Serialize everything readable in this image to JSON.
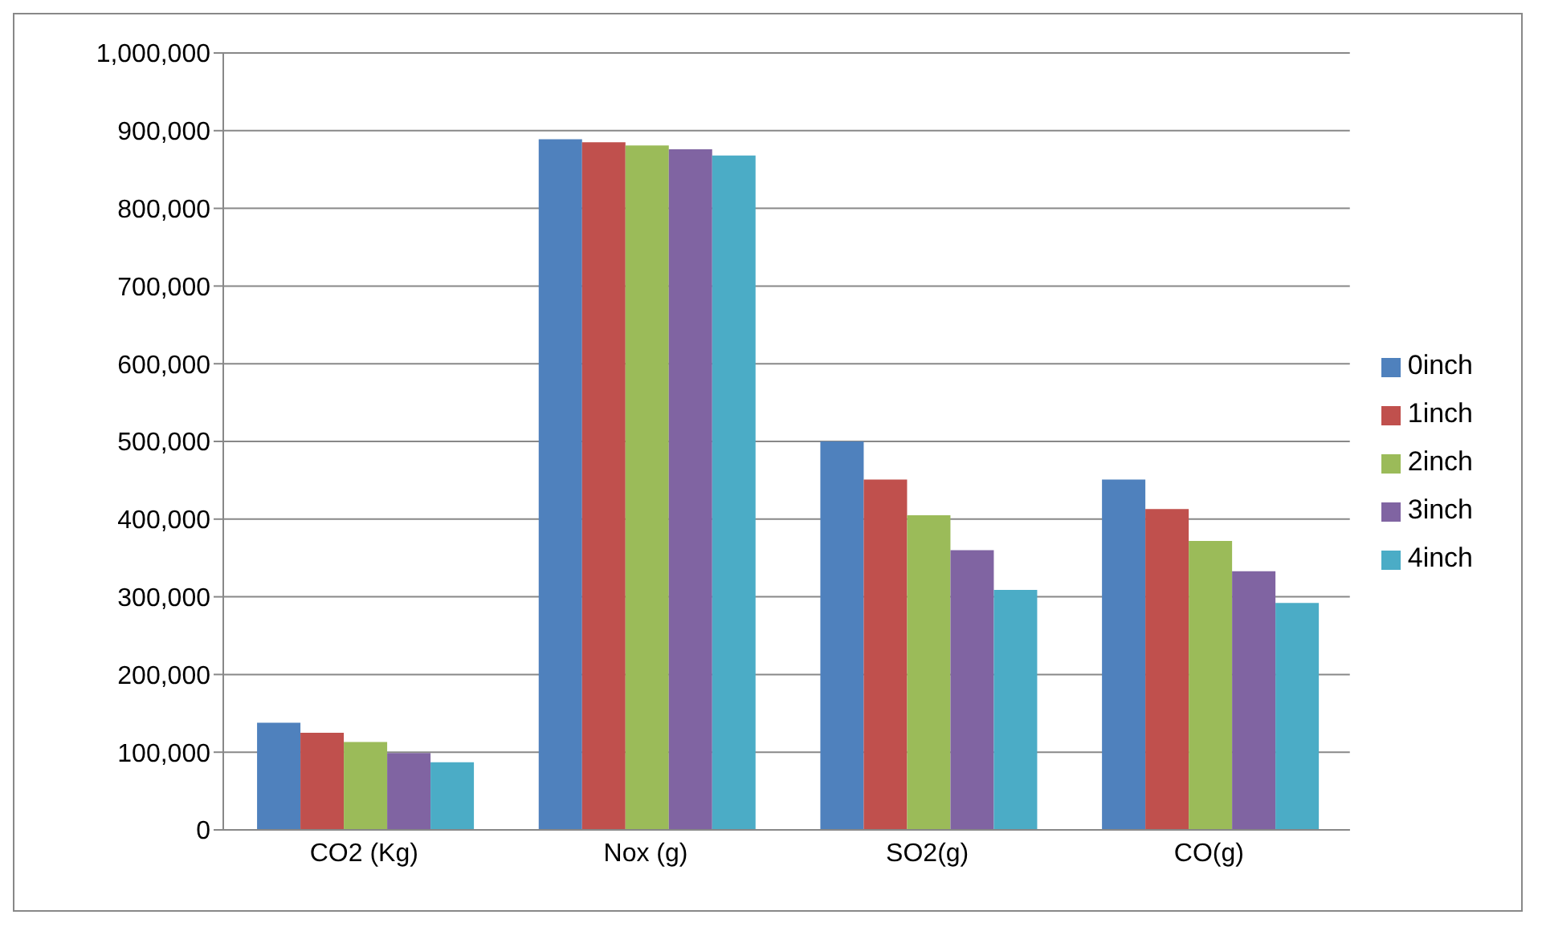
{
  "chart_data": {
    "type": "bar",
    "categories": [
      "CO2 (Kg)",
      "Nox (g)",
      "SO2(g)",
      "CO(g)"
    ],
    "series": [
      {
        "name": "0inch",
        "color": "#4f81bd",
        "values": [
          138000,
          889000,
          500000,
          451000
        ]
      },
      {
        "name": "1inch",
        "color": "#c0504d",
        "values": [
          125000,
          885000,
          451000,
          413000
        ]
      },
      {
        "name": "2inch",
        "color": "#9bbb59",
        "values": [
          113000,
          881000,
          405000,
          372000
        ]
      },
      {
        "name": "3inch",
        "color": "#8064a2",
        "values": [
          99000,
          876000,
          360000,
          333000
        ]
      },
      {
        "name": "4inch",
        "color": "#4bacc6",
        "values": [
          87000,
          868000,
          309000,
          292000
        ]
      }
    ],
    "ylim": [
      0,
      1000000
    ],
    "yticks": [
      0,
      {
        "value": 100000,
        "label": "100,000"
      },
      {
        "value": 200000,
        "label": "200,000"
      },
      {
        "value": 300000,
        "label": "300,000"
      },
      {
        "value": 400000,
        "label": "400,000"
      },
      {
        "value": 500000,
        "label": "500,000"
      },
      {
        "value": 600000,
        "label": "600,000"
      },
      {
        "value": 700000,
        "label": "700,000"
      },
      {
        "value": 800000,
        "label": "800,000"
      },
      {
        "value": 900000,
        "label": "900,000"
      },
      {
        "value": 1000000,
        "label": "1,000,000"
      }
    ],
    "grid": "y",
    "legend": "right"
  }
}
